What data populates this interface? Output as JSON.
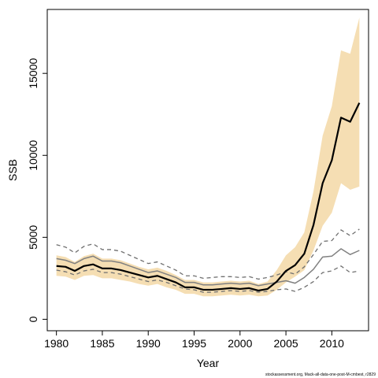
{
  "chart_data": {
    "type": "line",
    "title": "",
    "xlabel": "Year",
    "ylabel": "SSB",
    "xlim": [
      1979,
      2014
    ],
    "ylim": [
      -700,
      18900
    ],
    "x_ticks": [
      1980,
      1985,
      1990,
      1995,
      2000,
      2005,
      2010
    ],
    "y_ticks": [
      0,
      5000,
      10000,
      15000
    ],
    "grid": false,
    "legend": "none",
    "footer": "stockassessment.org, Mack-all-data-one-post-M-cmbest, r2829",
    "colors": {
      "band": "#f5deb3",
      "main": "#000000",
      "secondary": "#808080",
      "dashed": "#707070"
    },
    "x": [
      1980,
      1981,
      1982,
      1983,
      1984,
      1985,
      1986,
      1987,
      1988,
      1989,
      1990,
      1991,
      1992,
      1993,
      1994,
      1995,
      1996,
      1997,
      1998,
      1999,
      2000,
      2001,
      2002,
      2003,
      2004,
      2005,
      2006,
      2007,
      2008,
      2009,
      2010,
      2011,
      2012,
      2013
    ],
    "series": [
      {
        "role": "estimate",
        "values": [
          3250,
          3200,
          2950,
          3250,
          3350,
          3100,
          3100,
          3000,
          2850,
          2700,
          2550,
          2650,
          2450,
          2250,
          1950,
          1950,
          1800,
          1800,
          1850,
          1900,
          1850,
          1900,
          1750,
          1850,
          2300,
          2950,
          3300,
          4000,
          5750,
          8300,
          9700,
          12300,
          12050,
          13200
        ]
      },
      {
        "role": "band-upper",
        "values": [
          3900,
          3800,
          3500,
          3850,
          4000,
          3700,
          3700,
          3600,
          3400,
          3200,
          3050,
          3150,
          2950,
          2700,
          2400,
          2400,
          2250,
          2250,
          2300,
          2350,
          2300,
          2350,
          2150,
          2300,
          3000,
          3900,
          4400,
          5300,
          7800,
          11200,
          13000,
          16400,
          16200,
          18400
        ]
      },
      {
        "role": "band-lower",
        "values": [
          2650,
          2600,
          2400,
          2650,
          2700,
          2500,
          2500,
          2400,
          2300,
          2150,
          2050,
          2150,
          1950,
          1800,
          1550,
          1550,
          1400,
          1400,
          1450,
          1500,
          1450,
          1500,
          1400,
          1450,
          1800,
          2250,
          2600,
          3000,
          4200,
          5700,
          6500,
          8300,
          7900,
          8100
        ]
      },
      {
        "role": "secondary-estimate",
        "values": [
          3700,
          3600,
          3400,
          3700,
          3850,
          3550,
          3550,
          3450,
          3250,
          3050,
          2850,
          2950,
          2750,
          2550,
          2250,
          2250,
          2100,
          2100,
          2150,
          2200,
          2150,
          2200,
          2050,
          2150,
          2250,
          2350,
          2200,
          2550,
          3050,
          3800,
          3850,
          4300,
          3950,
          4200
        ]
      },
      {
        "role": "secondary-upper",
        "values": [
          4550,
          4400,
          4050,
          4450,
          4600,
          4250,
          4250,
          4150,
          3900,
          3650,
          3400,
          3500,
          3250,
          3000,
          2650,
          2650,
          2500,
          2550,
          2600,
          2600,
          2550,
          2600,
          2450,
          2550,
          2700,
          2900,
          2750,
          3200,
          3950,
          4750,
          4800,
          5450,
          5100,
          5500
        ]
      },
      {
        "role": "secondary-lower",
        "values": [
          3000,
          2900,
          2700,
          2950,
          3050,
          2850,
          2850,
          2750,
          2600,
          2450,
          2300,
          2400,
          2250,
          2050,
          1850,
          1800,
          1650,
          1650,
          1700,
          1750,
          1700,
          1750,
          1650,
          1700,
          1800,
          1850,
          1700,
          1950,
          2300,
          2850,
          2950,
          3250,
          2850,
          2950
        ]
      }
    ]
  }
}
